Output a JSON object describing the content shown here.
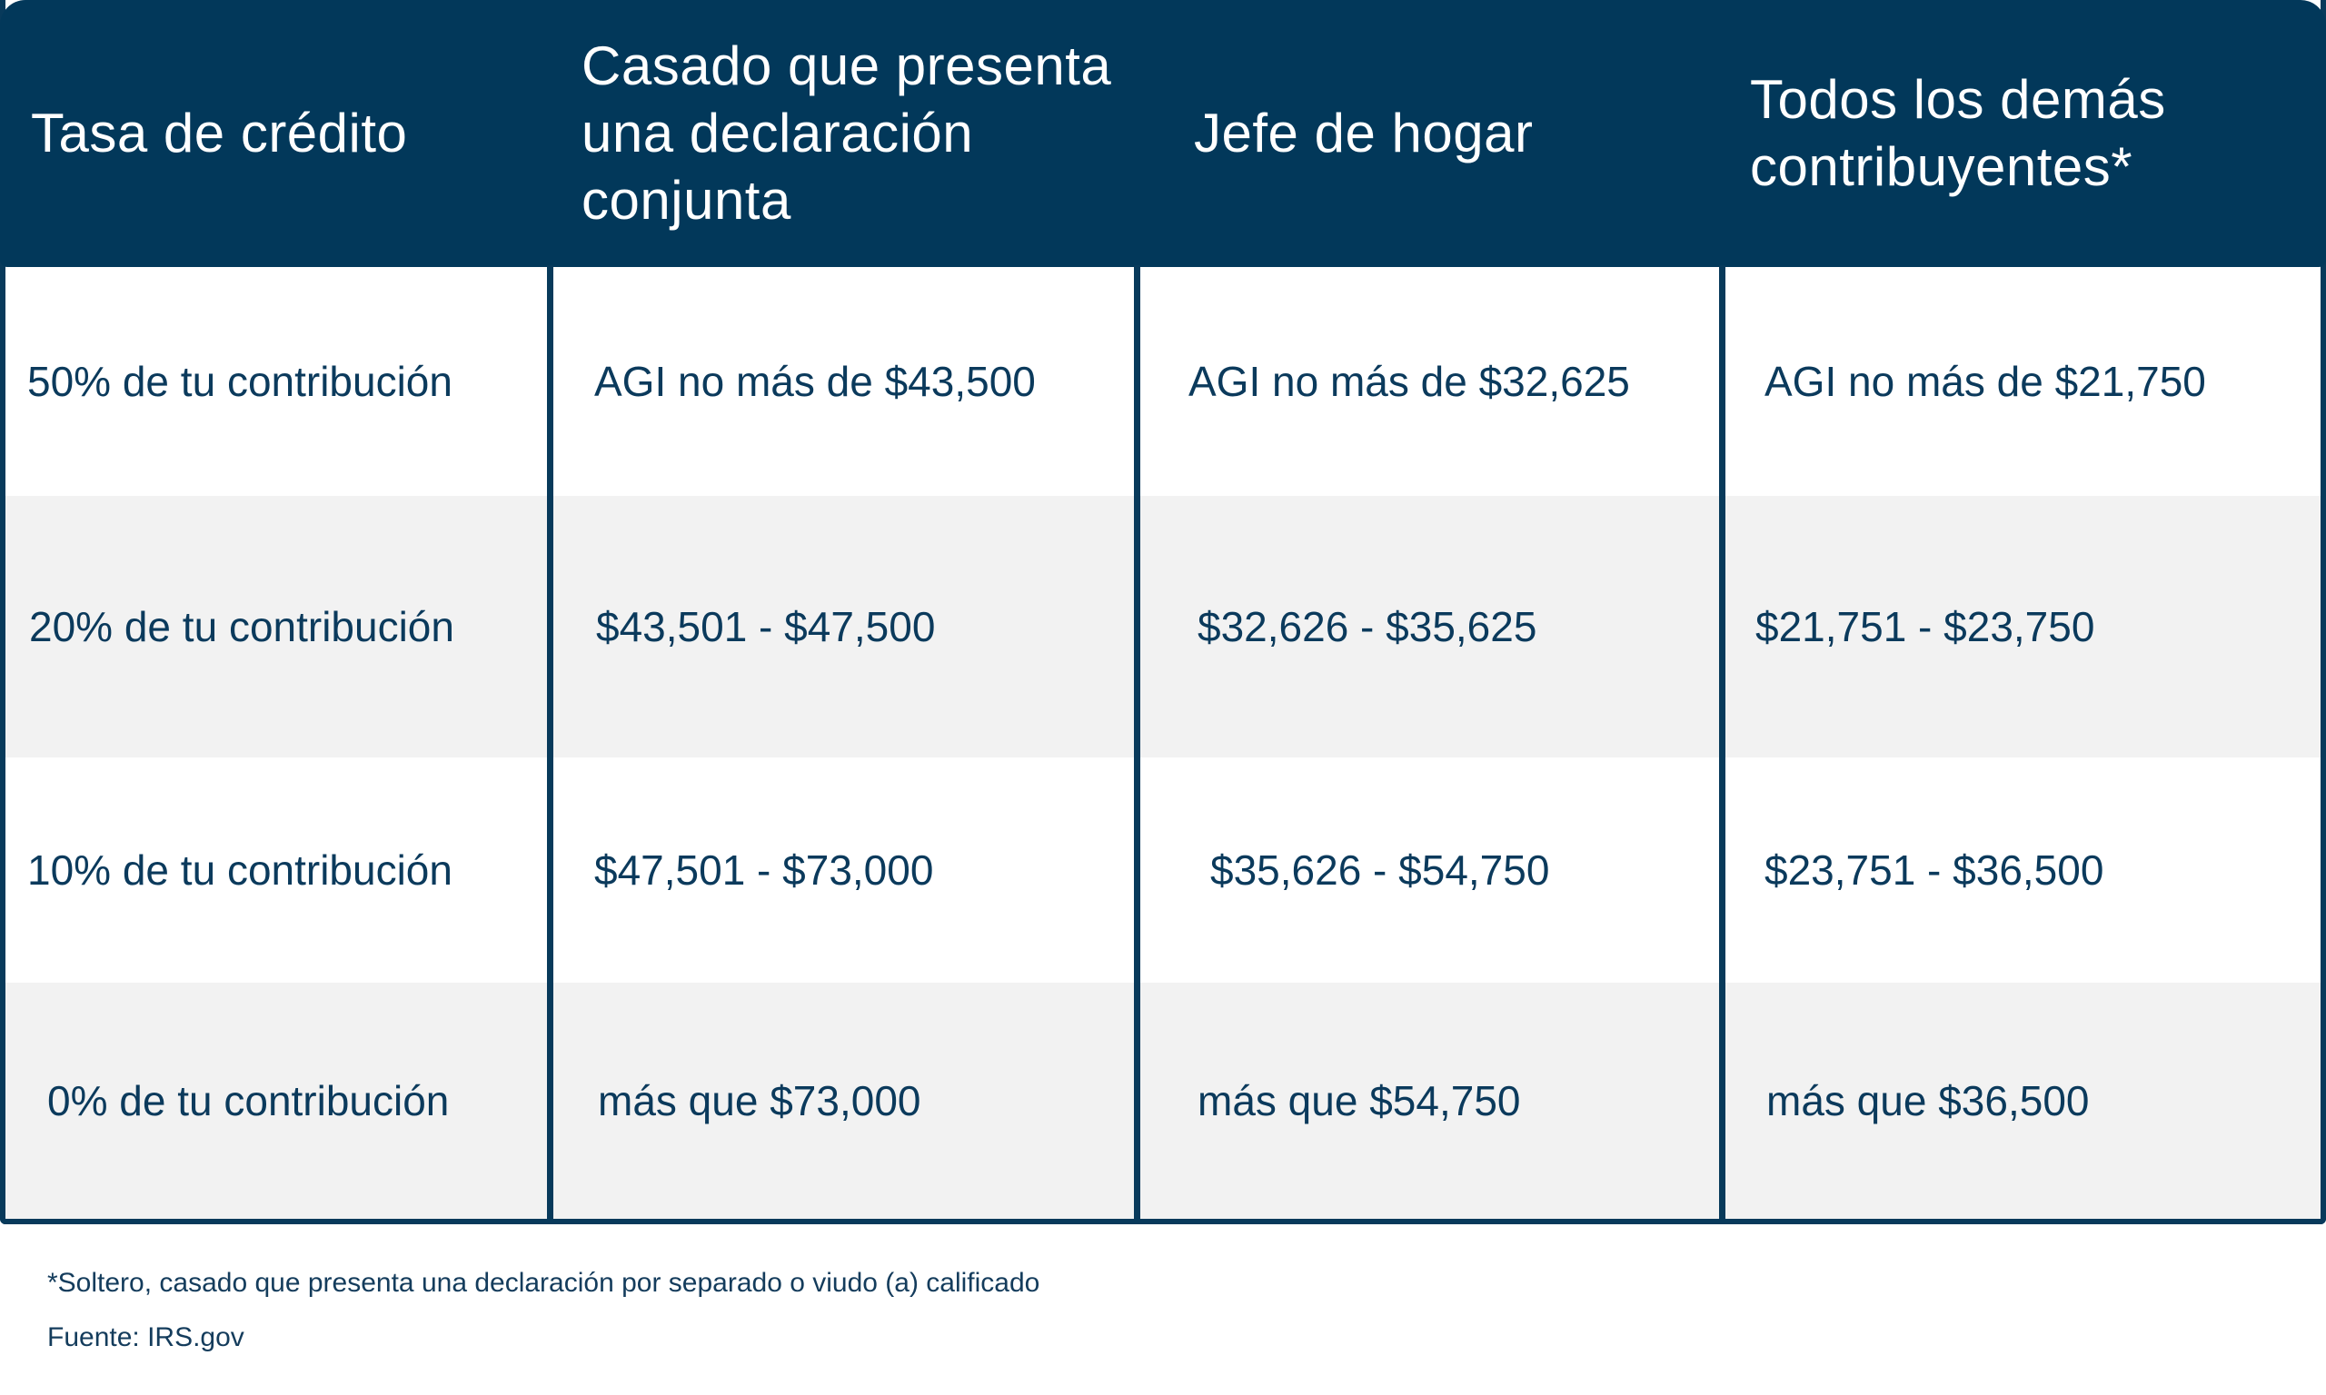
{
  "table": {
    "headers": [
      "Tasa de crédito",
      "Casado que presenta una declaración conjunta",
      "Jefe de hogar",
      "Todos los demás contribuyentes*"
    ],
    "rows": [
      [
        "50% de tu contribución",
        "AGI no más de $43,500",
        "AGI no más de $32,625",
        "AGI no más de $21,750"
      ],
      [
        "20% de tu contribución",
        "$43,501 - $47,500",
        "$32,626 - $35,625",
        "$21,751 - $23,750"
      ],
      [
        "10% de tu contribución",
        "$47,501 - $73,000",
        "$35,626 - $54,750",
        "$23,751 - $36,500"
      ],
      [
        "0% de tu contribución",
        "más que $73,000",
        "más que $54,750",
        "más que $36,500"
      ]
    ]
  },
  "footnotes": {
    "note": "*Soltero, casado que presenta una declaración por separado o viudo (a) calificado",
    "source": "Fuente: IRS.gov"
  },
  "colors": {
    "header_bg": "#02385a",
    "border": "#083a5b",
    "shaded_row": "#f2f2f2",
    "text": "#0b3a5c"
  }
}
